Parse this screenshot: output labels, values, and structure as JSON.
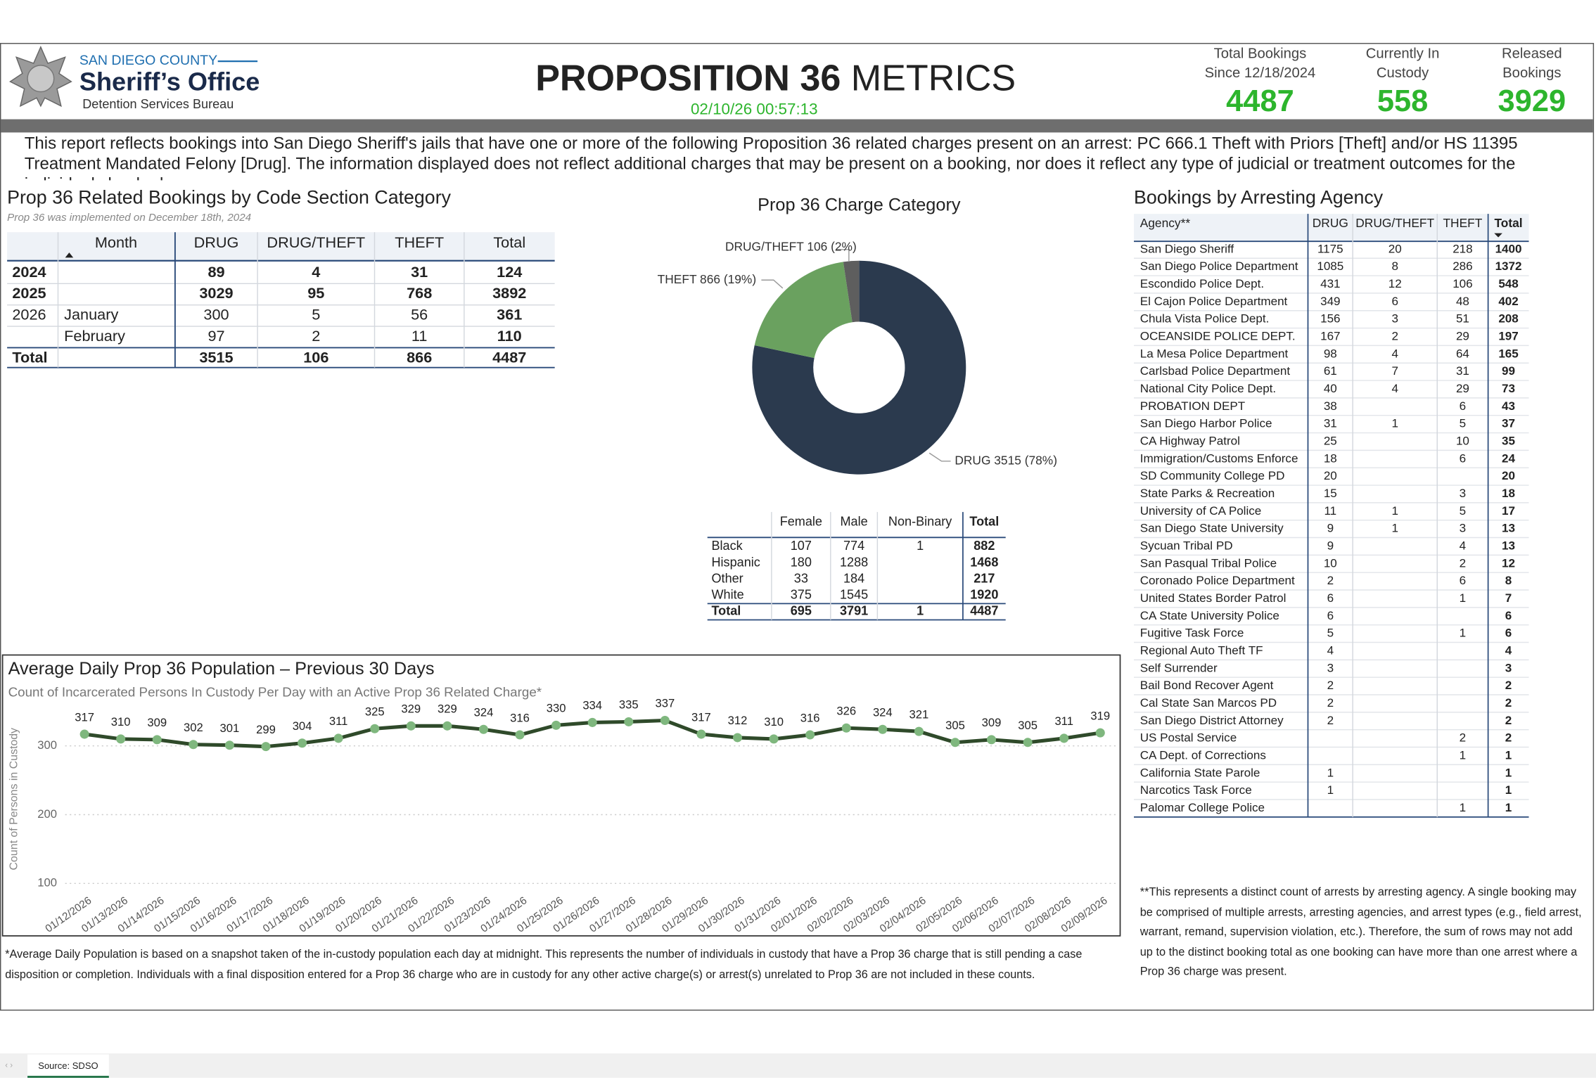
{
  "header": {
    "org_line": "SAN DIEGO COUNTY",
    "org_name": "Sheriff’s Office",
    "bureau": "Detention Services Bureau",
    "title_bold": "PROPOSITION 36",
    "title_light": "METRICS",
    "timestamp": "02/10/26 00:57:13"
  },
  "kpis": [
    {
      "label_lines": [
        "Total Bookings",
        "Since 12/18/2024"
      ],
      "value": 4487
    },
    {
      "label_lines": [
        "Currently In",
        "Custody"
      ],
      "value": 558
    },
    {
      "label_lines": [
        "Released",
        "Bookings"
      ],
      "value": 3929
    }
  ],
  "description": "This report reflects bookings into San Diego Sheriff's jails that have one or more of the following Proposition 36 related charges present on an arrest: PC 666.1 Theft with Priors [Theft] and/or HS 11395 Treatment Mandated Felony [Drug]. The information displayed does not reflect additional charges that may be present on a booking, nor does it reflect any type of judicial or treatment outcomes for the individuals booked.",
  "code_table": {
    "title": "Prop 36 Related Bookings by Code Section Category",
    "subtitle": "Prop 36 was implemented on December 18th, 2024",
    "columns": [
      "Month",
      "DRUG",
      "DRUG/THEFT",
      "THEFT",
      "Total"
    ],
    "rows": [
      {
        "year": "2024",
        "values": [
          89,
          4,
          31,
          124
        ]
      },
      {
        "year": "2025",
        "values": [
          3029,
          95,
          768,
          3892
        ]
      },
      {
        "year": "2026",
        "month": "January",
        "values": [
          300,
          5,
          56,
          361
        ]
      },
      {
        "month": "February",
        "values": [
          97,
          2,
          11,
          110
        ]
      },
      {
        "year": "Total",
        "values": [
          3515,
          106,
          866,
          4487
        ]
      }
    ]
  },
  "charge_donut": {
    "type": "donut",
    "title": "Prop 36 Charge Category",
    "slices": [
      {
        "value": 3515,
        "value_label": "DRUG 3515 (78%)",
        "color": "#2b3a4e"
      },
      {
        "value": 866,
        "value_label": "THEFT 866 (19%)",
        "color": "#6aa15f"
      },
      {
        "value": 106,
        "value_label": "DRUG/THEFT 106 (2%)",
        "color": "#5e5e5e"
      }
    ]
  },
  "demographics_table": {
    "columns": [
      "Female",
      "Male",
      "Non-Binary",
      "Total"
    ],
    "rows": [
      {
        "name": "Black",
        "values": [
          107,
          774,
          1,
          882
        ]
      },
      {
        "name": "Hispanic",
        "values": [
          180,
          1288,
          null,
          1468
        ]
      },
      {
        "name": "Other",
        "values": [
          33,
          184,
          null,
          217
        ]
      },
      {
        "name": "White",
        "values": [
          375,
          1545,
          null,
          1920
        ]
      },
      {
        "name": "Total",
        "values": [
          695,
          3791,
          1,
          4487
        ]
      }
    ]
  },
  "agency_table": {
    "title": "Bookings by Arresting Agency",
    "columns": [
      "Agency**",
      "DRUG",
      "DRUG/THEFT",
      "THEFT",
      "Total"
    ],
    "rows": [
      {
        "name": "San Diego Sheriff",
        "values": [
          1175,
          20,
          218,
          1400
        ]
      },
      {
        "name": "San Diego Police Department",
        "values": [
          1085,
          8,
          286,
          1372
        ]
      },
      {
        "name": "Escondido Police Dept.",
        "values": [
          431,
          12,
          106,
          548
        ]
      },
      {
        "name": "El Cajon Police Department",
        "values": [
          349,
          6,
          48,
          402
        ]
      },
      {
        "name": "Chula Vista Police Dept.",
        "values": [
          156,
          3,
          51,
          208
        ]
      },
      {
        "name": "OCEANSIDE POLICE DEPT.",
        "values": [
          167,
          2,
          29,
          197
        ]
      },
      {
        "name": "La Mesa Police Department",
        "values": [
          98,
          4,
          64,
          165
        ]
      },
      {
        "name": "Carlsbad Police Department",
        "values": [
          61,
          7,
          31,
          99
        ]
      },
      {
        "name": "National City Police Dept.",
        "values": [
          40,
          4,
          29,
          73
        ]
      },
      {
        "name": "PROBATION DEPT",
        "values": [
          38,
          null,
          6,
          43
        ]
      },
      {
        "name": "San Diego Harbor Police",
        "values": [
          31,
          1,
          5,
          37
        ]
      },
      {
        "name": "CA Highway Patrol",
        "values": [
          25,
          null,
          10,
          35
        ]
      },
      {
        "name": "Immigration/Customs Enforce",
        "values": [
          18,
          null,
          6,
          24
        ]
      },
      {
        "name": "SD Community College PD",
        "values": [
          20,
          null,
          null,
          20
        ]
      },
      {
        "name": "State Parks & Recreation",
        "values": [
          15,
          null,
          3,
          18
        ]
      },
      {
        "name": "University of CA Police",
        "values": [
          11,
          1,
          5,
          17
        ]
      },
      {
        "name": "San Diego State University",
        "values": [
          9,
          1,
          3,
          13
        ]
      },
      {
        "name": "Sycuan Tribal PD",
        "values": [
          9,
          null,
          4,
          13
        ]
      },
      {
        "name": "San Pasqual Tribal Police",
        "values": [
          10,
          null,
          2,
          12
        ]
      },
      {
        "name": "Coronado Police Department",
        "values": [
          2,
          null,
          6,
          8
        ]
      },
      {
        "name": "United States Border Patrol",
        "values": [
          6,
          null,
          1,
          7
        ]
      },
      {
        "name": "CA State University Police",
        "values": [
          6,
          null,
          null,
          6
        ]
      },
      {
        "name": "Fugitive Task Force",
        "values": [
          5,
          null,
          1,
          6
        ]
      },
      {
        "name": "Regional Auto Theft TF",
        "values": [
          4,
          null,
          null,
          4
        ]
      },
      {
        "name": "Self Surrender",
        "values": [
          3,
          null,
          null,
          3
        ]
      },
      {
        "name": "Bail Bond Recover Agent",
        "values": [
          2,
          null,
          null,
          2
        ]
      },
      {
        "name": "Cal State San Marcos PD",
        "values": [
          2,
          null,
          null,
          2
        ]
      },
      {
        "name": "San Diego District Attorney",
        "values": [
          2,
          null,
          null,
          2
        ]
      },
      {
        "name": "US Postal Service",
        "values": [
          null,
          null,
          2,
          2
        ]
      },
      {
        "name": "CA Dept. of Corrections",
        "values": [
          null,
          null,
          1,
          1
        ]
      },
      {
        "name": "California State Parole",
        "values": [
          1,
          null,
          null,
          1
        ]
      },
      {
        "name": "Narcotics Task Force",
        "values": [
          1,
          null,
          null,
          1
        ]
      },
      {
        "name": "Palomar College Police",
        "values": [
          null,
          null,
          1,
          1
        ]
      }
    ],
    "footnote": "**This represents a distinct count of arrests by arresting agency. A single booking may be comprised of multiple arrests, arresting agencies, and arrest types (e.g., field arrest, warrant, remand, supervision violation, etc.). Therefore, the sum of rows may not add up to the distinct booking total as one booking can have more than one arrest where a Prop 36 charge was present."
  },
  "population_chart": {
    "type": "line",
    "title": "Average Daily Prop 36 Population – Previous 30 Days",
    "subtitle": "Count of Incarcerated Persons In Custody Per Day with an Active Prop 36 Related Charge*",
    "y_label": "Count of Persons in Custody",
    "x": [
      "01/12/2026",
      "01/13/2026",
      "01/14/2026",
      "01/15/2026",
      "01/16/2026",
      "01/17/2026",
      "01/18/2026",
      "01/19/2026",
      "01/20/2026",
      "01/21/2026",
      "01/22/2026",
      "01/23/2026",
      "01/24/2026",
      "01/25/2026",
      "01/26/2026",
      "01/27/2026",
      "01/28/2026",
      "01/29/2026",
      "01/30/2026",
      "01/31/2026",
      "02/01/2026",
      "02/02/2026",
      "02/03/2026",
      "02/04/2026",
      "02/05/2026",
      "02/06/2026",
      "02/07/2026",
      "02/08/2026",
      "02/09/2026"
    ],
    "values": [
      317,
      310,
      309,
      302,
      301,
      299,
      304,
      311,
      325,
      329,
      329,
      324,
      316,
      330,
      334,
      335,
      337,
      317,
      312,
      310,
      316,
      326,
      324,
      321,
      305,
      309,
      305,
      311,
      319
    ],
    "ylim": [
      100,
      350
    ],
    "yticks": [
      100,
      200,
      300
    ],
    "grid": true,
    "line_color": "#2f4a2a",
    "marker_color": "#7fb77e",
    "footnote": "*Average Daily Population is based on a snapshot taken of the in-custody population each day at midnight. This represents the number of individuals in custody that have a Prop 36 charge that is still pending a case disposition or completion. Individuals with a final disposition entered for a Prop 36 charge who are in custody for any other active charge(s) or arrest(s) unrelated to Prop 36 are not included in these counts."
  },
  "source_tab": "Source: SDSO"
}
